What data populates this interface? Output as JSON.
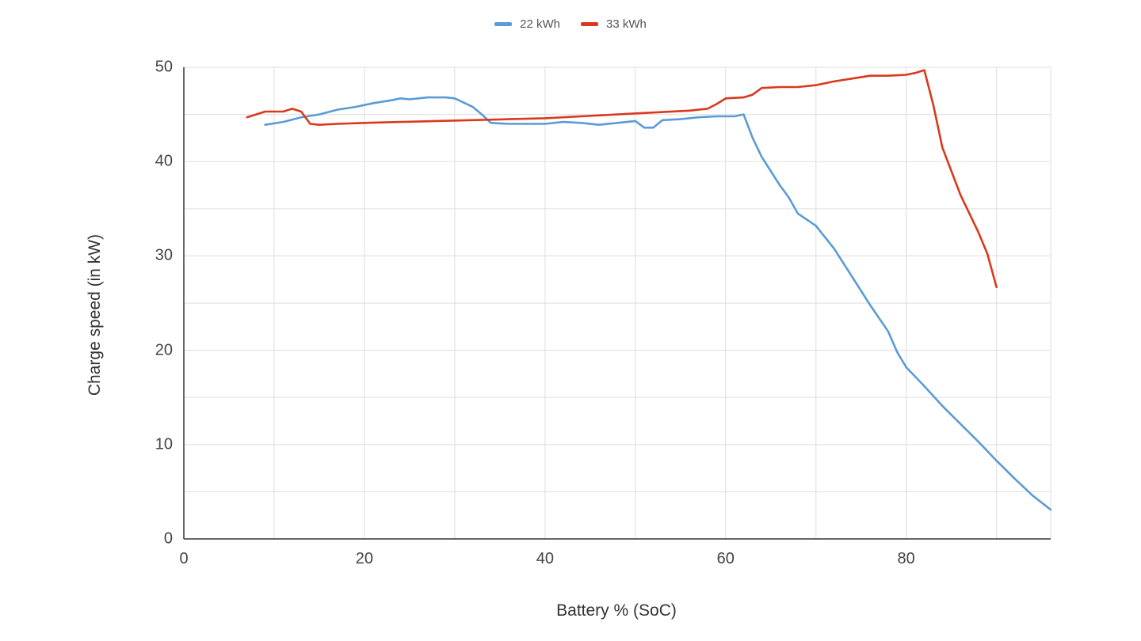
{
  "chart_data": {
    "type": "line",
    "title": "",
    "xlabel": "Battery % (SoC)",
    "ylabel": "Charge speed (in kW)",
    "xlim": [
      0,
      96
    ],
    "ylim": [
      0,
      50
    ],
    "x_ticks": [
      0,
      20,
      40,
      60,
      80
    ],
    "y_ticks": [
      0,
      10,
      20,
      30,
      40,
      50
    ],
    "grid": true,
    "legend_position": "top",
    "series": [
      {
        "name": "22 kWh",
        "color": "#5b9bd5",
        "points": [
          [
            9,
            43.9
          ],
          [
            11,
            44.2
          ],
          [
            13,
            44.7
          ],
          [
            15,
            45.0
          ],
          [
            17,
            45.5
          ],
          [
            19,
            45.8
          ],
          [
            21,
            46.2
          ],
          [
            23,
            46.5
          ],
          [
            24,
            46.7
          ],
          [
            25,
            46.6
          ],
          [
            27,
            46.8
          ],
          [
            29,
            46.8
          ],
          [
            30,
            46.7
          ],
          [
            32,
            45.8
          ],
          [
            33,
            45.0
          ],
          [
            34,
            44.1
          ],
          [
            36,
            44.0
          ],
          [
            40,
            44.0
          ],
          [
            42,
            44.2
          ],
          [
            44,
            44.1
          ],
          [
            46,
            43.9
          ],
          [
            48,
            44.1
          ],
          [
            50,
            44.3
          ],
          [
            51,
            43.6
          ],
          [
            52,
            43.6
          ],
          [
            53,
            44.4
          ],
          [
            55,
            44.5
          ],
          [
            57,
            44.7
          ],
          [
            59,
            44.8
          ],
          [
            61,
            44.8
          ],
          [
            62,
            45.0
          ],
          [
            63,
            42.5
          ],
          [
            64,
            40.5
          ],
          [
            66,
            37.5
          ],
          [
            67,
            36.2
          ],
          [
            68,
            34.5
          ],
          [
            70,
            33.2
          ],
          [
            72,
            30.8
          ],
          [
            74,
            27.8
          ],
          [
            76,
            24.8
          ],
          [
            78,
            22.0
          ],
          [
            79,
            19.8
          ],
          [
            80,
            18.2
          ],
          [
            82,
            16.2
          ],
          [
            84,
            14.1
          ],
          [
            86,
            12.2
          ],
          [
            88,
            10.3
          ],
          [
            90,
            8.3
          ],
          [
            92,
            6.4
          ],
          [
            94,
            4.6
          ],
          [
            96,
            3.1
          ]
        ]
      },
      {
        "name": "33 kWh",
        "color": "#d9391c",
        "points": [
          [
            7,
            44.7
          ],
          [
            9,
            45.3
          ],
          [
            11,
            45.3
          ],
          [
            12,
            45.6
          ],
          [
            13,
            45.3
          ],
          [
            14,
            44.0
          ],
          [
            15,
            43.9
          ],
          [
            17,
            44.0
          ],
          [
            20,
            44.1
          ],
          [
            24,
            44.2
          ],
          [
            28,
            44.3
          ],
          [
            32,
            44.4
          ],
          [
            36,
            44.5
          ],
          [
            40,
            44.6
          ],
          [
            44,
            44.8
          ],
          [
            48,
            45.0
          ],
          [
            52,
            45.2
          ],
          [
            56,
            45.4
          ],
          [
            58,
            45.6
          ],
          [
            59,
            46.1
          ],
          [
            60,
            46.7
          ],
          [
            62,
            46.8
          ],
          [
            63,
            47.1
          ],
          [
            64,
            47.8
          ],
          [
            66,
            47.9
          ],
          [
            68,
            47.9
          ],
          [
            70,
            48.1
          ],
          [
            72,
            48.5
          ],
          [
            74,
            48.8
          ],
          [
            76,
            49.1
          ],
          [
            78,
            49.1
          ],
          [
            80,
            49.2
          ],
          [
            81,
            49.4
          ],
          [
            82,
            49.7
          ],
          [
            83,
            46.0
          ],
          [
            84,
            41.5
          ],
          [
            86,
            36.5
          ],
          [
            88,
            32.5
          ],
          [
            89,
            30.2
          ],
          [
            90,
            26.7
          ]
        ]
      }
    ]
  },
  "legend": {
    "items": [
      {
        "label": "22 kWh",
        "color": "#5b9bd5"
      },
      {
        "label": "33 kWh",
        "color": "#d9391c"
      }
    ]
  }
}
